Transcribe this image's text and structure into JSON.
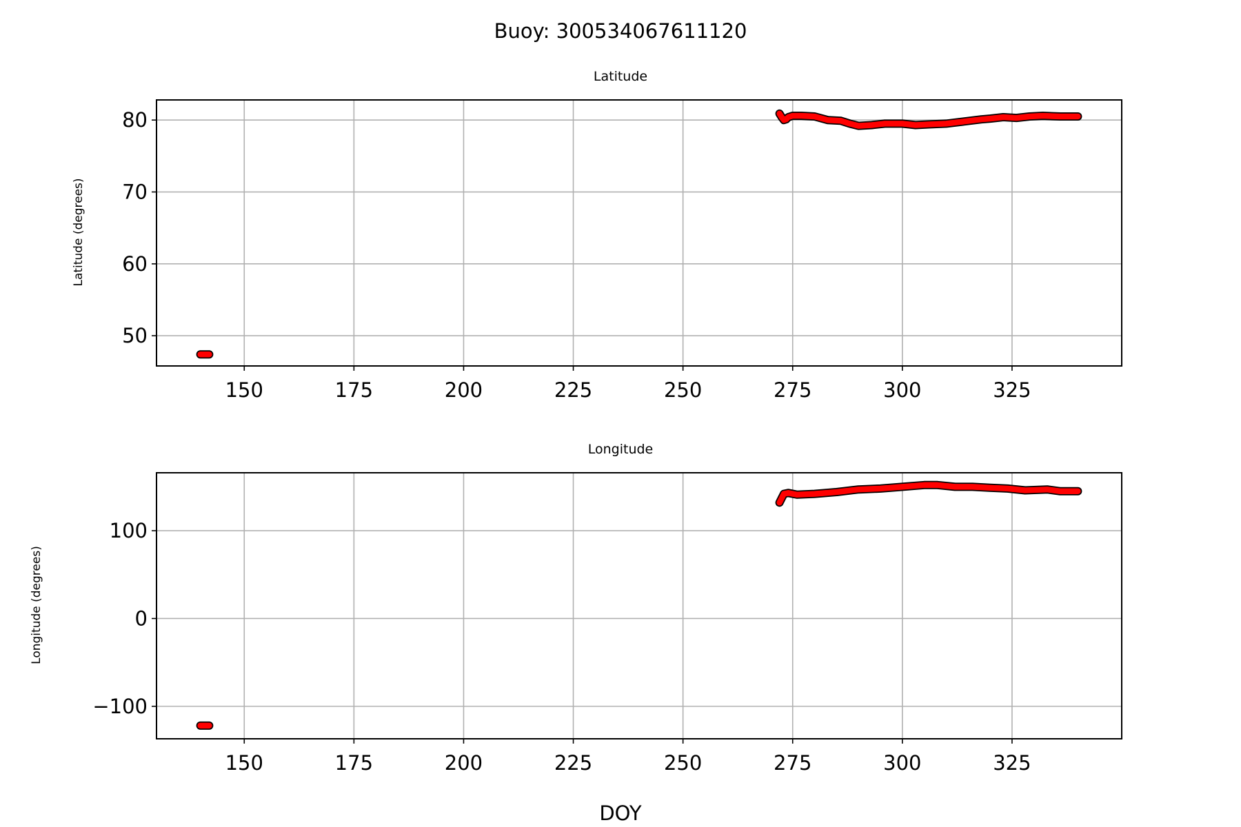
{
  "chart_data": {
    "type": "line",
    "title": "Buoy: 300534067611120",
    "xlabel": "DOY",
    "marker_color": "#ff0000",
    "marker_edge_color": "#000000",
    "grid": true,
    "panels": [
      {
        "title": "Latitude",
        "ylabel": "Latitude (degrees)",
        "xlim": [
          130,
          350
        ],
        "ylim": [
          45.8,
          82.8
        ],
        "xticks": [
          150,
          175,
          200,
          225,
          250,
          275,
          300,
          325
        ],
        "yticks": [
          50,
          60,
          70,
          80
        ],
        "ytick_labels": [
          "50",
          "60",
          "70",
          "80"
        ],
        "segments": [
          {
            "x": [
              140,
              141,
              142
            ],
            "y": [
              47.4,
              47.4,
              47.4
            ]
          },
          {
            "x": [
              272,
              272.5,
              273,
              273.5,
              274,
              275,
              277,
              280,
              283,
              286,
              288,
              290,
              293,
              296,
              300,
              303,
              306,
              310,
              314,
              318,
              320,
              323,
              326,
              329,
              332,
              336,
              340
            ],
            "y": [
              80.9,
              80.4,
              80.0,
              80.1,
              80.4,
              80.6,
              80.6,
              80.5,
              80.0,
              79.9,
              79.5,
              79.2,
              79.3,
              79.5,
              79.5,
              79.3,
              79.4,
              79.5,
              79.8,
              80.1,
              80.2,
              80.4,
              80.3,
              80.5,
              80.6,
              80.5,
              80.5
            ]
          }
        ]
      },
      {
        "title": "Longitude",
        "ylabel": "Longitude (degrees)",
        "xlim": [
          130,
          350
        ],
        "ylim": [
          -137,
          166
        ],
        "xticks": [
          150,
          175,
          200,
          225,
          250,
          275,
          300,
          325
        ],
        "yticks": [
          -100,
          0,
          100
        ],
        "ytick_labels": [
          "−100",
          "0",
          "100"
        ],
        "segments": [
          {
            "x": [
              140,
              141,
              142
            ],
            "y": [
              -122,
              -122,
              -122
            ]
          },
          {
            "x": [
              272,
              272.5,
              273,
              274,
              276,
              280,
              285,
              290,
              295,
              300,
              305,
              308,
              312,
              316,
              320,
              324,
              328,
              333,
              336,
              340
            ],
            "y": [
              132,
              137,
              142,
              143,
              141,
              142,
              144,
              147,
              148,
              150,
              152,
              152,
              150,
              150,
              149,
              148,
              146,
              147,
              145,
              145
            ]
          }
        ]
      }
    ]
  }
}
